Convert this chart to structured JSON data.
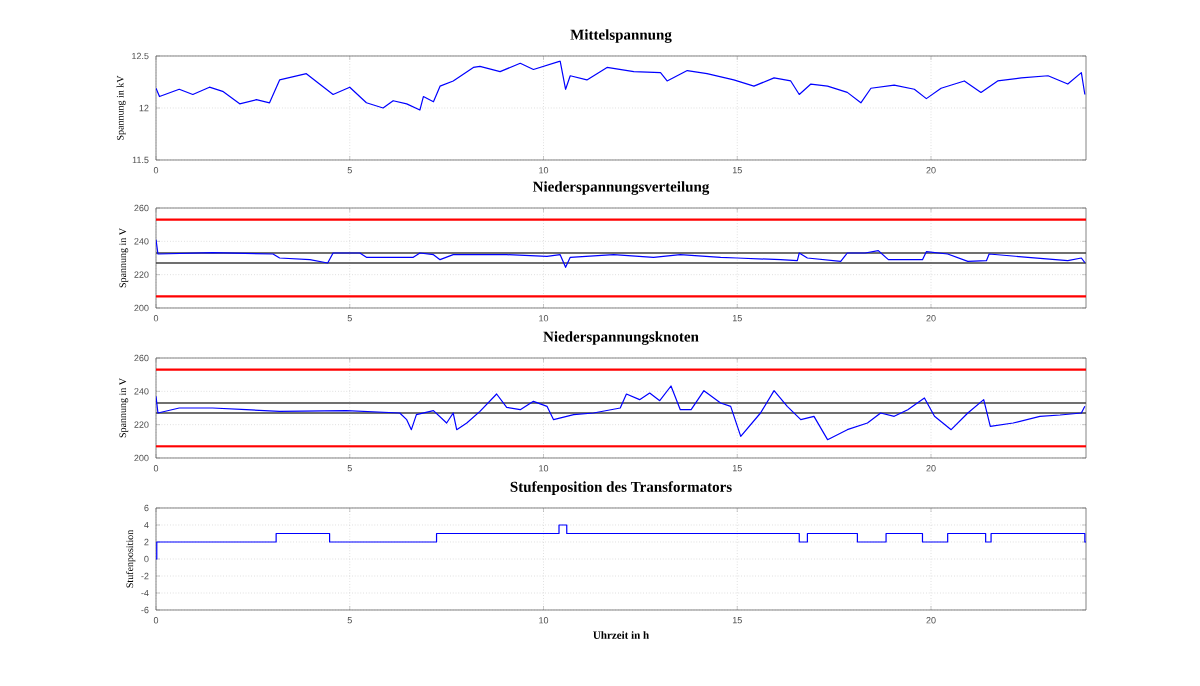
{
  "chart_data": [
    {
      "type": "line",
      "title": "Mittelspannung",
      "ylabel": "Spannung in kV",
      "xlim": [
        0,
        24
      ],
      "xticks": [
        0,
        5,
        10,
        15,
        20
      ],
      "ylim": [
        11.5,
        12.5
      ],
      "yticks": [
        11.5,
        12,
        12.5
      ],
      "grid": true,
      "series": [
        {
          "color": "#0000ff",
          "x": [
            0,
            0.09,
            0.6,
            0.95,
            1.38,
            1.72,
            2.16,
            2.59,
            2.93,
            3.19,
            3.88,
            4.22,
            4.57,
            5.0,
            5.43,
            5.86,
            6.12,
            6.47,
            6.81,
            6.9,
            7.16,
            7.33,
            7.67,
            8.19,
            8.36,
            8.88,
            9.4,
            9.74,
            10.43,
            10.57,
            10.69,
            11.12,
            11.64,
            12.33,
            13.02,
            13.19,
            13.71,
            14.22,
            14.91,
            15.43,
            15.95,
            16.38,
            16.6,
            16.9,
            17.33,
            17.84,
            18.19,
            18.45,
            19.05,
            19.57,
            19.88,
            20.26,
            20.86,
            21.29,
            21.72,
            22.33,
            23.02,
            23.53,
            23.88,
            23.97
          ],
          "values": [
            12.19,
            12.11,
            12.18,
            12.13,
            12.2,
            12.16,
            12.04,
            12.08,
            12.05,
            12.27,
            12.33,
            12.23,
            12.13,
            12.2,
            12.05,
            12.0,
            12.07,
            12.04,
            11.98,
            12.11,
            12.06,
            12.21,
            12.26,
            12.39,
            12.4,
            12.35,
            12.43,
            12.37,
            12.45,
            12.18,
            12.31,
            12.27,
            12.39,
            12.35,
            12.34,
            12.26,
            12.36,
            12.33,
            12.27,
            12.21,
            12.29,
            12.26,
            12.13,
            12.23,
            12.21,
            12.15,
            12.05,
            12.19,
            12.22,
            12.18,
            12.09,
            12.19,
            12.26,
            12.15,
            12.26,
            12.29,
            12.31,
            12.23,
            12.34,
            12.13
          ]
        }
      ]
    },
    {
      "type": "line",
      "title": "Niederspannungsverteilung",
      "ylabel": "Spannung in V",
      "xlim": [
        0,
        24
      ],
      "xticks": [
        0,
        5,
        10,
        15,
        20
      ],
      "ylim": [
        200,
        260
      ],
      "yticks": [
        200,
        220,
        240,
        260
      ],
      "grid": true,
      "ref_lines": [
        {
          "axis": "y",
          "value": 253,
          "color": "#ff0000"
        },
        {
          "axis": "y",
          "value": 207,
          "color": "#ff0000"
        },
        {
          "axis": "y",
          "value": 233,
          "color": "#404040"
        },
        {
          "axis": "y",
          "value": 227,
          "color": "#404040"
        }
      ],
      "series": [
        {
          "color": "#0000ff",
          "x": [
            0,
            0.05,
            1.46,
            3.02,
            3.19,
            3.97,
            4.43,
            4.57,
            5.26,
            5.43,
            6.64,
            6.81,
            7.16,
            7.33,
            7.67,
            9.05,
            10.09,
            10.43,
            10.57,
            10.69,
            11.81,
            12.84,
            13.53,
            14.57,
            15.0,
            16.12,
            16.55,
            16.6,
            16.81,
            17.67,
            17.84,
            18.3,
            18.64,
            18.9,
            19.78,
            19.88,
            20.43,
            20.95,
            21.43,
            21.5,
            22.5,
            23.53,
            23.88,
            23.97
          ],
          "values": [
            241,
            232.4,
            233.2,
            232.4,
            230,
            229,
            227,
            233,
            233,
            230.4,
            230.4,
            233,
            232,
            229,
            232,
            232,
            231,
            232,
            224.4,
            230.4,
            232,
            230.4,
            232,
            230.4,
            230,
            229,
            228.4,
            233,
            230,
            228,
            233,
            233,
            234.4,
            229,
            229,
            233.8,
            232.4,
            228,
            228.4,
            232.4,
            230.4,
            228.4,
            230,
            227.2
          ]
        }
      ]
    },
    {
      "type": "line",
      "title": "Niederspannungsknoten",
      "ylabel": "Spannung in V",
      "xlim": [
        0,
        24
      ],
      "xticks": [
        0,
        5,
        10,
        15,
        20
      ],
      "ylim": [
        200,
        260
      ],
      "yticks": [
        200,
        220,
        240,
        260
      ],
      "grid": true,
      "ref_lines": [
        {
          "axis": "y",
          "value": 253,
          "color": "#ff0000"
        },
        {
          "axis": "y",
          "value": 207,
          "color": "#ff0000"
        },
        {
          "axis": "y",
          "value": 233,
          "color": "#404040"
        },
        {
          "axis": "y",
          "value": 227,
          "color": "#404040"
        }
      ],
      "series": [
        {
          "color": "#0000ff",
          "x": [
            0,
            0.05,
            0.6,
            1.46,
            2.33,
            3.19,
            4.91,
            6.29,
            6.47,
            6.59,
            6.72,
            7.16,
            7.5,
            7.67,
            7.76,
            8.02,
            8.36,
            8.79,
            9.05,
            9.4,
            9.74,
            10.09,
            10.26,
            10.78,
            11.29,
            11.98,
            12.14,
            12.48,
            12.74,
            13.0,
            13.29,
            13.53,
            13.81,
            14.14,
            14.57,
            14.83,
            15.09,
            15.6,
            15.95,
            16.29,
            16.64,
            16.98,
            17.33,
            17.84,
            18.36,
            18.7,
            19.05,
            19.4,
            19.83,
            20.09,
            20.52,
            20.95,
            21.36,
            21.53,
            22.12,
            22.81,
            23.33,
            23.88,
            23.97
          ],
          "values": [
            237,
            227,
            230,
            230,
            229,
            228,
            228.4,
            227,
            223,
            217,
            226,
            228.4,
            221,
            227,
            217,
            221,
            228,
            238.4,
            230.4,
            229,
            234,
            231,
            223,
            226,
            227,
            230,
            238.4,
            235,
            239,
            234.4,
            243.2,
            229,
            229,
            240.4,
            233,
            231,
            213,
            227,
            240.4,
            231,
            223,
            225,
            211,
            217,
            221,
            227,
            225,
            229,
            236,
            225,
            217,
            227,
            235,
            219,
            221,
            225,
            225.8,
            227,
            231
          ]
        }
      ]
    },
    {
      "type": "step",
      "title": "Stufenposition des Transformators",
      "xlabel": "Uhrzeit in h",
      "ylabel": "Stufenposition",
      "xlim": [
        0,
        24
      ],
      "xticks": [
        0,
        5,
        10,
        15,
        20
      ],
      "ylim": [
        -6,
        6
      ],
      "yticks": [
        -6,
        -4,
        -2,
        0,
        2,
        4,
        6
      ],
      "grid": true,
      "series": [
        {
          "color": "#0000ff",
          "x": [
            0,
            0.02,
            3.1,
            4.48,
            7.24,
            10.4,
            10.6,
            16.6,
            16.81,
            18.1,
            18.84,
            19.78,
            20.43,
            21.41,
            21.55,
            23.97,
            24
          ],
          "values": [
            0,
            2,
            3,
            2,
            3,
            4,
            3,
            2,
            3,
            2,
            3,
            2,
            3,
            2,
            3,
            2,
            2
          ]
        }
      ]
    }
  ]
}
